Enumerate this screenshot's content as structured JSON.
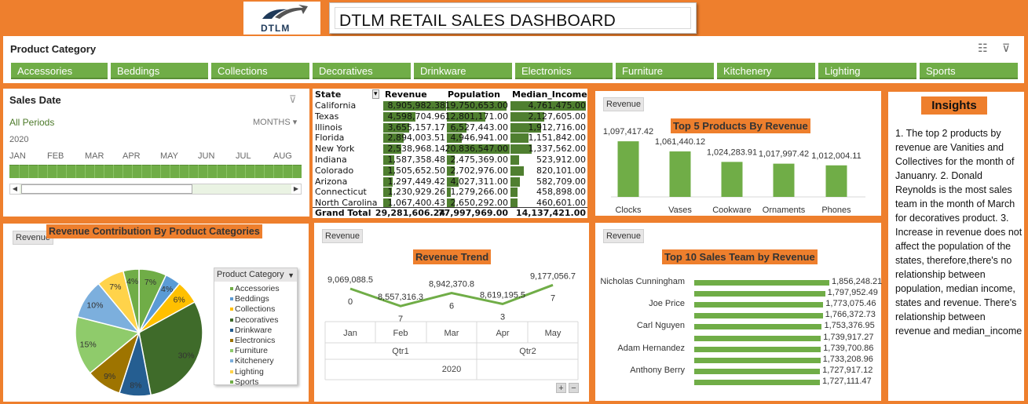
{
  "header": {
    "logo_text": "DTLM",
    "title": "DTLM RETAIL SALES DASHBOARD"
  },
  "colors": {
    "background": "#ee7f2d",
    "accent_green": "#70ad47",
    "dark_green": "#4f7f30"
  },
  "product_slicer": {
    "title": "Product Category",
    "icons": [
      "multi-select-icon",
      "clear-filter-icon"
    ],
    "items": [
      "Accessories",
      "Beddings",
      "Collections",
      "Decoratives",
      "Drinkware",
      "Electronics",
      "Furniture",
      "Kitchenery",
      "Lighting",
      "Sports"
    ]
  },
  "sales_date": {
    "title": "Sales Date",
    "all_periods": "All Periods",
    "period_level": "MONTHS",
    "year": "2020",
    "months": [
      "JAN",
      "FEB",
      "MAR",
      "APR",
      "MAY",
      "JUN",
      "JUL",
      "AUG"
    ]
  },
  "state_table": {
    "headers": [
      "State",
      "Revenue",
      "Population",
      "Median_Income"
    ],
    "rows": [
      {
        "state": "California",
        "revenue": "8,905,982.38",
        "population": "19,750,653.00",
        "median": "4,761,475.00",
        "rev": 8905982.38,
        "pop": 19750653,
        "inc": 4761475
      },
      {
        "state": "Texas",
        "revenue": "4,598,704.96",
        "population": "12,801,171.00",
        "median": "2,127,605.00",
        "rev": 4598704.96,
        "pop": 12801171,
        "inc": 2127605
      },
      {
        "state": "Illinois",
        "revenue": "3,655,157.17",
        "population": "6,527,443.00",
        "median": "1,912,716.00",
        "rev": 3655157.17,
        "pop": 6527443,
        "inc": 1912716
      },
      {
        "state": "Florida",
        "revenue": "2,894,003.51",
        "population": "4,946,941.00",
        "median": "1,151,842.00",
        "rev": 2894003.51,
        "pop": 4946941,
        "inc": 1151842
      },
      {
        "state": "New York",
        "revenue": "2,538,968.14",
        "population": "20,836,547.00",
        "median": "1,337,562.00",
        "rev": 2538968.14,
        "pop": 20836547,
        "inc": 1337562
      },
      {
        "state": "Indiana",
        "revenue": "1,587,358.48",
        "population": "2,475,369.00",
        "median": "523,912.00",
        "rev": 1587358.48,
        "pop": 2475369,
        "inc": 523912
      },
      {
        "state": "Colorado",
        "revenue": "1,505,652.50",
        "population": "2,702,976.00",
        "median": "820,101.00",
        "rev": 1505652.5,
        "pop": 2702976,
        "inc": 820101
      },
      {
        "state": "Arizona",
        "revenue": "1,297,449.42",
        "population": "4,027,311.00",
        "median": "582,709.00",
        "rev": 1297449.42,
        "pop": 4027311,
        "inc": 582709
      },
      {
        "state": "Connecticut",
        "revenue": "1,230,929.26",
        "population": "1,279,266.00",
        "median": "458,898.00",
        "rev": 1230929.26,
        "pop": 1279266,
        "inc": 458898
      },
      {
        "state": "North Carolina",
        "revenue": "1,067,400.43",
        "population": "2,650,292.00",
        "median": "460,601.00",
        "rev": 1067400.43,
        "pop": 2650292,
        "inc": 460601
      }
    ],
    "total": {
      "label": "Grand Total",
      "revenue": "29,281,606.24",
      "population": "77,997,969.00",
      "median": "14,137,421.00"
    }
  },
  "top5": {
    "field_button": "Revenue",
    "title": "Top 5 Products By Revenue",
    "chart_data": {
      "type": "bar",
      "categories": [
        "Clocks",
        "Vases",
        "Cookware",
        "Ornaments",
        "Phones"
      ],
      "values": [
        1097417.42,
        1061440.12,
        1024283.91,
        1017997.42,
        1012004.11
      ],
      "labels": [
        "1,097,417.42",
        "1,061,440.12",
        "1,024,283.91",
        "1,017,997.42",
        "1,012,004.11"
      ],
      "ylim": [
        900000,
        1120000
      ]
    }
  },
  "insights": {
    "title": "Insights",
    "text": "1. The top 2 products by revenue are Vanities and Collectives for the month of Januanry. 2. Donald Reynolds is the most sales team in the month of March for decoratives product. 3. Increase in revenue does not affect the population of the states, therefore,there's no relationship between population, median income, states and revenue. There's relationship between revenue and median_income"
  },
  "pie": {
    "field_button": "Revenue",
    "title": "Revenue Contribution By Product Categories",
    "legend_title": "Product Category",
    "chart_data": {
      "type": "pie",
      "categories": [
        "Accessories",
        "Beddings",
        "Collections",
        "Decoratives",
        "Drinkware",
        "Electronics",
        "Furniture",
        "Kitchenery",
        "Lighting",
        "Sports"
      ],
      "values": [
        7,
        4,
        6,
        30,
        8,
        9,
        15,
        10,
        7,
        4
      ],
      "labels": [
        "7%",
        "4%",
        "6%",
        "30%",
        "8%",
        "9%",
        "15%",
        "10%",
        "7%",
        "4%"
      ],
      "colors": [
        "#70ad47",
        "#5b9bd5",
        "#ffc000",
        "#3f6b2a",
        "#255e91",
        "#9e7400",
        "#8fcb6b",
        "#7cafdd",
        "#ffd34a",
        "#70ad47"
      ]
    }
  },
  "trend": {
    "field_button": "Revenue",
    "title": "Revenue Trend",
    "chart_data": {
      "type": "line",
      "categories": [
        "Jan",
        "Feb",
        "Mar",
        "Apr",
        "May"
      ],
      "values": [
        9069088.5,
        8557316.37,
        8942370.86,
        8619195.53,
        9177056.77
      ],
      "label_main": [
        "9,069,088.5",
        "8,557,316.3",
        "8,942,370.8",
        "8,619,195.5",
        "9,177,056.7"
      ],
      "label_sub": [
        "0",
        "7",
        "6",
        "3",
        "7"
      ],
      "quarters": [
        "Qtr1",
        "Qtr2"
      ],
      "year": "2020",
      "ylim": [
        8400000,
        9300000
      ]
    },
    "zoom_in": "+",
    "zoom_out": "−"
  },
  "top10": {
    "field_button": "Revenue",
    "title": "Top 10 Sales Team by Revenue",
    "chart_data": {
      "type": "bar",
      "categories": [
        "Nicholas Cunningham",
        "",
        "Joe Price",
        "",
        "Carl Nguyen",
        "",
        "Adam Hernandez",
        "",
        "Anthony Berry",
        ""
      ],
      "values": [
        1856248.21,
        1797952.49,
        1773075.46,
        1766372.73,
        1753376.95,
        1739917.27,
        1739700.86,
        1733208.96,
        1727917.12,
        1727111.47
      ],
      "labels": [
        "1,856,248.21",
        "1,797,952.49",
        "1,773,075.46",
        "1,766,372.73",
        "1,753,376.95",
        "1,739,917.27",
        "1,739,700.86",
        "1,733,208.96",
        "1,727,917.12",
        "1,727,111.47"
      ]
    }
  }
}
